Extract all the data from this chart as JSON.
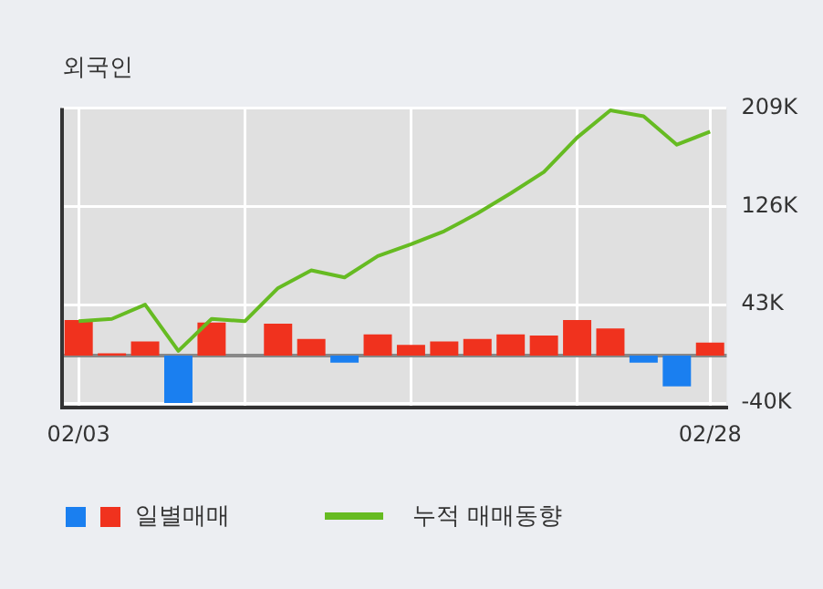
{
  "chart_data": {
    "type": "bar",
    "title": "외국인",
    "categories": [
      "02/03",
      null,
      null,
      null,
      null,
      null,
      null,
      null,
      null,
      null,
      null,
      null,
      null,
      null,
      null,
      null,
      null,
      null,
      null,
      "02/28"
    ],
    "series": [
      {
        "name": "일별매매",
        "colors": [
          "#f0321e",
          "#f0321e",
          "#f0321e",
          "#1a7ff0",
          "#f0321e",
          null,
          "#f0321e",
          "#f0321e",
          "#1a7ff0",
          "#f0321e",
          "#f0321e",
          "#f0321e",
          "#f0321e",
          "#f0321e",
          "#f0321e",
          "#f0321e",
          "#f0321e",
          "#1a7ff0",
          "#1a7ff0",
          "#f0321e"
        ],
        "values": [
          30,
          2,
          12,
          -40,
          28,
          0,
          27,
          14,
          -6,
          18,
          9,
          12,
          14,
          18,
          17,
          30,
          23,
          -6,
          -26,
          11
        ]
      },
      {
        "name": "누적 매매동향",
        "type": "line",
        "color": "#66bb22",
        "values": [
          29,
          31,
          43,
          4,
          31,
          29,
          57,
          72,
          66,
          84,
          94,
          105,
          120,
          137,
          155,
          184,
          207,
          202,
          178,
          189
        ]
      }
    ],
    "ylim": [
      -44,
      209
    ],
    "yticks": [
      {
        "value": -40,
        "label": "-40K"
      },
      {
        "value": 43,
        "label": "43K"
      },
      {
        "value": 126,
        "label": "126K"
      },
      {
        "value": 209,
        "label": "209K"
      }
    ],
    "grid": true,
    "legend": "bottom",
    "marker": "none",
    "ref_lines": [
      {
        "axis": "y",
        "value": 0,
        "color": "#888888"
      }
    ]
  }
}
